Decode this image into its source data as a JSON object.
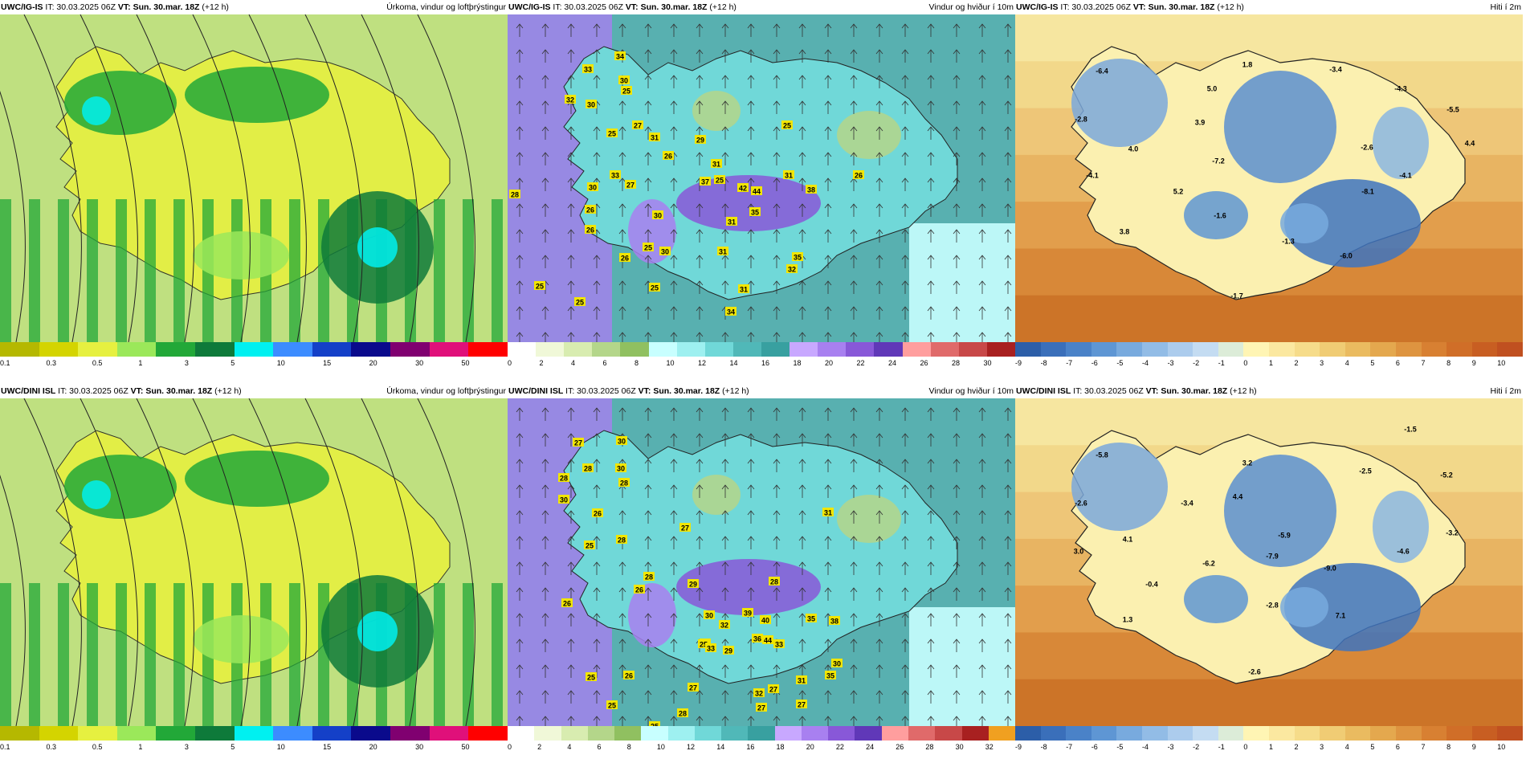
{
  "panels": [
    {
      "model": "UWC/IG-IS",
      "it": "IT: 30.03.2025 06Z",
      "vt_label": "VT:",
      "vt": "Sun. 30.mar. 18Z",
      "lead": "(+12 h)",
      "title": "Úrkoma, vindur og loftþrýstingur",
      "type": "precip",
      "scale_ticks": [
        "0.1",
        "0.3",
        "0.5",
        "1",
        "3",
        "5",
        "10",
        "15",
        "20",
        "30",
        "50"
      ],
      "scale_colors": [
        "#b5b800",
        "#d4d400",
        "#e6f040",
        "#9be85a",
        "#22a838",
        "#0e7a3a",
        "#00f0f0",
        "#3c8cff",
        "#1440c8",
        "#0a0a8c",
        "#800070",
        "#e0107a",
        "#ff0000"
      ]
    },
    {
      "model": "UWC/IG-IS",
      "it": "IT: 30.03.2025 06Z",
      "vt_label": "VT:",
      "vt": "Sun. 30.mar. 18Z",
      "lead": "(+12 h)",
      "title": "Vindur og hviður í 10m",
      "type": "wind",
      "scale_ticks": [
        "0",
        "2",
        "4",
        "6",
        "8",
        "10",
        "12",
        "14",
        "16",
        "18",
        "20",
        "22",
        "24",
        "26",
        "28",
        "30"
      ],
      "scale_colors": [
        "#ffffff",
        "#f0f8d8",
        "#d8ecb0",
        "#b4d68a",
        "#90c060",
        "#c8ffff",
        "#9ef0f0",
        "#70d8d8",
        "#50b8b8",
        "#38a0a0",
        "#c8a8ff",
        "#a880f0",
        "#8858d8",
        "#6038b8",
        "#ff9e9e",
        "#e06a6a",
        "#c84848",
        "#a82020"
      ],
      "labels": [
        "34",
        "33",
        "30",
        "32",
        "30",
        "25",
        "25",
        "27",
        "31",
        "29",
        "25",
        "26",
        "31",
        "33",
        "25",
        "37",
        "42",
        "44",
        "38",
        "31",
        "26",
        "30",
        "27",
        "28",
        "26",
        "30",
        "26",
        "31",
        "35",
        "30",
        "31",
        "25",
        "26",
        "35",
        "32",
        "31",
        "34",
        "25",
        "25",
        "25"
      ]
    },
    {
      "model": "UWC/IG-IS",
      "it": "IT: 30.03.2025 06Z",
      "vt_label": "VT:",
      "vt": "Sun. 30.mar. 18Z",
      "lead": "(+12 h)",
      "title": "Hiti í 2m",
      "type": "temp",
      "scale_ticks": [
        "-9",
        "-8",
        "-7",
        "-6",
        "-5",
        "-4",
        "-3",
        "-2",
        "-1",
        "0",
        "1",
        "2",
        "3",
        "4",
        "5",
        "6",
        "7",
        "8",
        "9",
        "10"
      ],
      "scale_colors": [
        "#2c5ea8",
        "#3a6fba",
        "#4a82c8",
        "#5e96d4",
        "#78aade",
        "#92bce6",
        "#accced",
        "#c4dcf2",
        "#dcecd8",
        "#fff5b4",
        "#fbe8a0",
        "#f6dc8a",
        "#f0cc74",
        "#eabb60",
        "#e4a84e",
        "#de9440",
        "#d88032",
        "#d06e28",
        "#c85e22",
        "#c05020"
      ],
      "labels": [
        "-6.4",
        "-2.8",
        "1.8",
        "-3.4",
        "5.0",
        "-4.3",
        "3.9",
        "-5.5",
        "4.4",
        "4.0",
        "-2.6",
        "-4.1",
        "-7.2",
        "-4.1",
        "5.2",
        "-8.1",
        "-1.6",
        "3.8",
        "-1.3",
        "-6.0",
        "-1.7"
      ]
    },
    {
      "model": "UWC/DINI ISL",
      "it": "IT: 30.03.2025 06Z",
      "vt_label": "VT:",
      "vt": "Sun. 30.mar. 18Z",
      "lead": "(+12 h)",
      "title": "Úrkoma, vindur og loftþrýstingur",
      "type": "precip",
      "scale_ticks": [
        "0.1",
        "0.3",
        "0.5",
        "1",
        "3",
        "5",
        "10",
        "15",
        "20",
        "30",
        "50"
      ],
      "scale_colors": [
        "#b5b800",
        "#d4d400",
        "#e6f040",
        "#9be85a",
        "#22a838",
        "#0e7a3a",
        "#00f0f0",
        "#3c8cff",
        "#1440c8",
        "#0a0a8c",
        "#800070",
        "#e0107a",
        "#ff0000"
      ]
    },
    {
      "model": "UWC/DINI ISL",
      "it": "IT: 30.03.2025 06Z",
      "vt_label": "VT:",
      "vt": "Sun. 30.mar. 18Z",
      "lead": "(+12 h)",
      "title": "Vindur og hviður í 10m",
      "type": "wind",
      "scale_ticks": [
        "0",
        "2",
        "4",
        "6",
        "8",
        "10",
        "12",
        "14",
        "16",
        "18",
        "20",
        "22",
        "24",
        "26",
        "28",
        "30",
        "32"
      ],
      "scale_colors": [
        "#ffffff",
        "#f0f8d8",
        "#d8ecb0",
        "#b4d68a",
        "#90c060",
        "#c8ffff",
        "#9ef0f0",
        "#70d8d8",
        "#50b8b8",
        "#38a0a0",
        "#c8a8ff",
        "#a880f0",
        "#8858d8",
        "#6038b8",
        "#ff9e9e",
        "#e06a6a",
        "#c84848",
        "#a82020",
        "#f0a020"
      ],
      "labels": [
        "27",
        "30",
        "28",
        "30",
        "28",
        "28",
        "30",
        "26",
        "28",
        "25",
        "28",
        "27",
        "31",
        "26",
        "28",
        "29",
        "30",
        "39",
        "35",
        "33",
        "40",
        "38",
        "33",
        "44",
        "32",
        "25",
        "29",
        "36",
        "26",
        "33",
        "25",
        "26",
        "27",
        "28",
        "31",
        "35",
        "30",
        "27",
        "32",
        "27",
        "27",
        "40",
        "25",
        "25",
        "27"
      ]
    },
    {
      "model": "UWC/DINI ISL",
      "it": "IT: 30.03.2025 06Z",
      "vt_label": "VT:",
      "vt": "Sun. 30.mar. 18Z",
      "lead": "(+12 h)",
      "title": "Hiti í 2m",
      "type": "temp",
      "scale_ticks": [
        "-9",
        "-8",
        "-7",
        "-6",
        "-5",
        "-4",
        "-3",
        "-2",
        "-1",
        "0",
        "1",
        "2",
        "3",
        "4",
        "5",
        "6",
        "7",
        "8",
        "9",
        "10"
      ],
      "scale_colors": [
        "#2c5ea8",
        "#3a6fba",
        "#4a82c8",
        "#5e96d4",
        "#78aade",
        "#92bce6",
        "#accced",
        "#c4dcf2",
        "#dcecd8",
        "#fff5b4",
        "#fbe8a0",
        "#f6dc8a",
        "#f0cc74",
        "#eabb60",
        "#e4a84e",
        "#de9440",
        "#d88032",
        "#d06e28",
        "#c85e22",
        "#c05020"
      ],
      "labels": [
        "-5.8",
        "-2.6",
        "3.2",
        "-1.5",
        "-2.5",
        "-3.4",
        "4.4",
        "-5.2",
        "4.1",
        "-5.9",
        "-3.2",
        "3.0",
        "-6.2",
        "-7.9",
        "-4.6",
        "-0.4",
        "-9.0",
        "-2.8",
        "1.3",
        "7.1",
        "-2.6"
      ]
    }
  ]
}
